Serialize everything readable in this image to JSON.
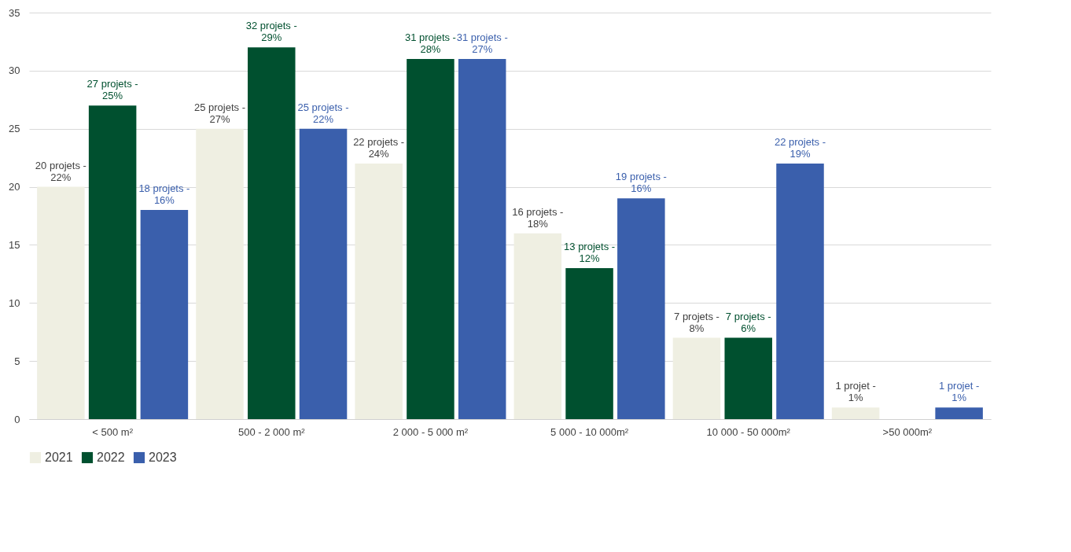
{
  "chart_data": {
    "type": "bar",
    "categories": [
      "< 500 m²",
      "500 - 2 000 m²",
      "2 000 - 5 000 m²",
      "5 000 - 10 000m²",
      "10 000 - 50 000m²",
      ">50 000m²"
    ],
    "series": [
      {
        "name": "2021",
        "color": "#efefe2",
        "values": [
          20,
          25,
          22,
          16,
          7,
          1
        ],
        "value_labels": [
          "20 projets - 22%",
          "25 projets - 27%",
          "22 projets - 24%",
          "16 projets - 18%",
          "7 projets - 8%",
          "1 projet - 1%"
        ]
      },
      {
        "name": "2022",
        "color": "#00502f",
        "values": [
          27,
          32,
          31,
          13,
          7,
          null
        ],
        "value_labels": [
          "27 projets - 25%",
          "32 projets - 29%",
          "31 projets - 28%",
          "13 projets - 12%",
          "7 projets - 6%",
          null
        ]
      },
      {
        "name": "2023",
        "color": "#3a5fac",
        "values": [
          18,
          25,
          31,
          19,
          22,
          1
        ],
        "value_labels": [
          "18 projets - 16%",
          "25 projets - 22%",
          "31 projets - 27%",
          "19 projets - 16%",
          "22 projets - 19%",
          "1 projet - 1%"
        ]
      }
    ],
    "ylim": [
      0,
      35
    ],
    "yticks": [
      0,
      5,
      10,
      15,
      20,
      25,
      30,
      35
    ],
    "grid": "y",
    "legend": "bottom"
  }
}
